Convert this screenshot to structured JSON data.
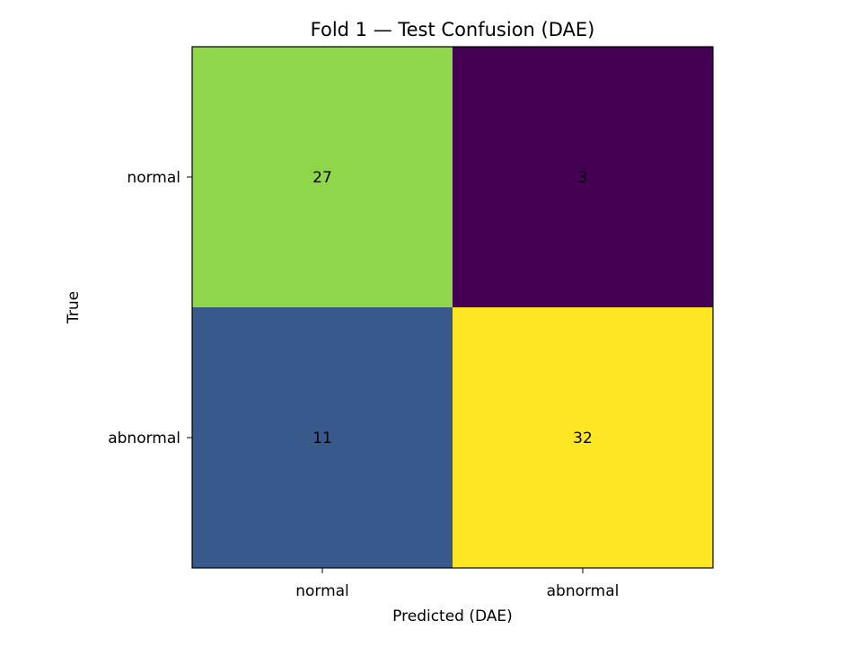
{
  "chart_data": {
    "type": "heatmap",
    "title": "Fold 1 — Test Confusion (DAE)",
    "xlabel": "Predicted (DAE)",
    "ylabel": "True",
    "x_categories": [
      "normal",
      "abnormal"
    ],
    "y_categories": [
      "normal",
      "abnormal"
    ],
    "values": [
      [
        27,
        3
      ],
      [
        11,
        32
      ]
    ],
    "colormap": "viridis",
    "cell_colors": [
      [
        "#8fd64b",
        "#440154"
      ],
      [
        "#38598c",
        "#fde725"
      ]
    ],
    "legend": "none",
    "grid": false
  }
}
